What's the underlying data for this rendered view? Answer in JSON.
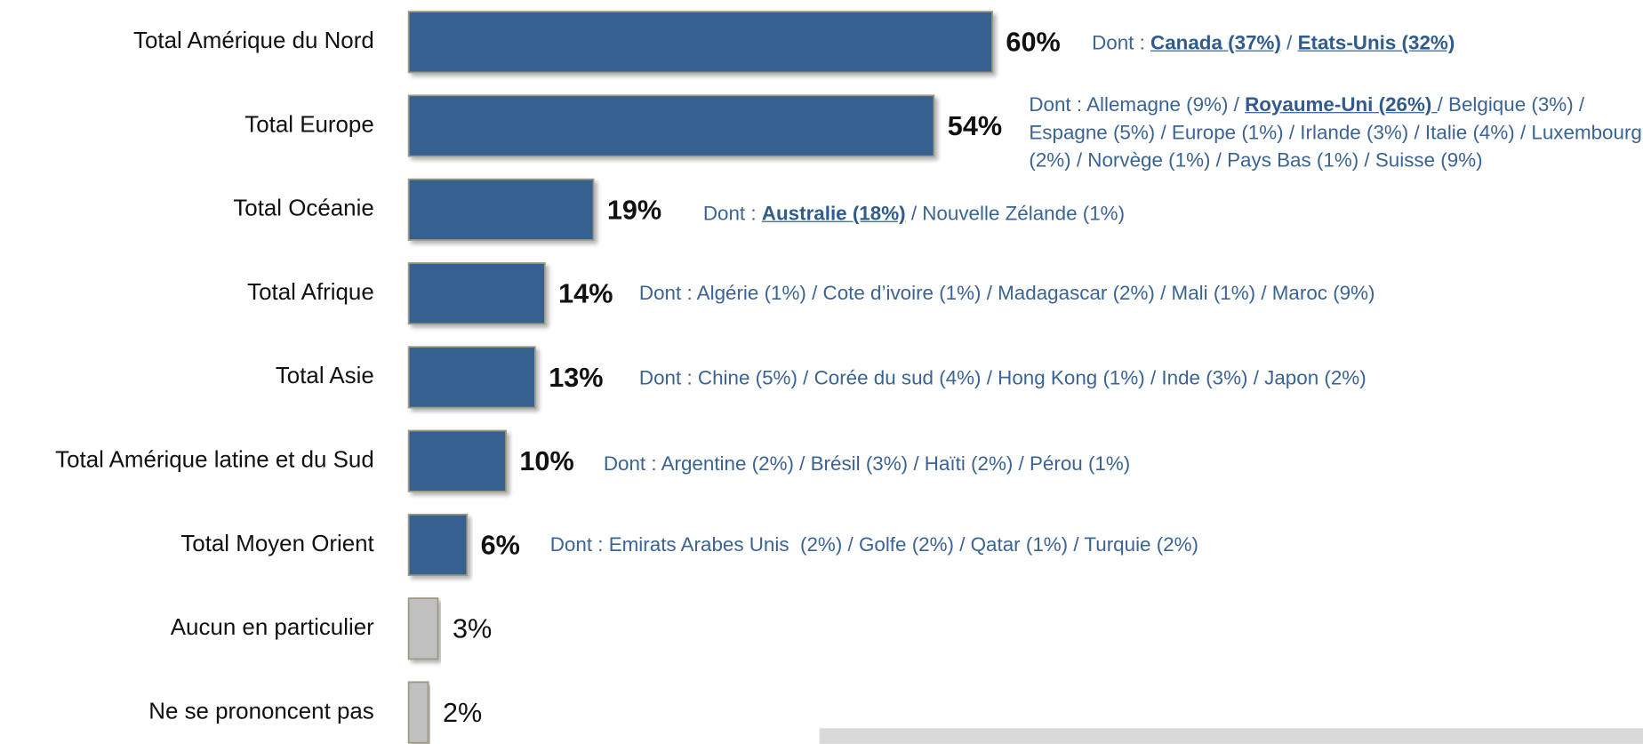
{
  "chart_data": {
    "type": "bar",
    "categories": [
      "Total Amérique du Nord",
      "Total Europe",
      "Total Océanie",
      "Total Afrique",
      "Total Asie",
      "Total Amérique latine et du Sud",
      "Total Moyen Orient",
      "Aucun en particulier",
      "Ne se prononcent pas"
    ],
    "values": [
      60,
      54,
      19,
      14,
      13,
      10,
      6,
      3,
      2
    ],
    "value_labels": [
      "60%",
      "54%",
      "19%",
      "14%",
      "13%",
      "10%",
      "6%",
      "3%",
      "2%"
    ],
    "colors": [
      "#36618f",
      "#36618f",
      "#36618f",
      "#36618f",
      "#36618f",
      "#36618f",
      "#36618f",
      "#c0c0c0",
      "#c0c0c0"
    ],
    "annotations": [
      [
        {
          "text": "Dont : "
        },
        {
          "text": "Canada (37%)",
          "bold": true
        },
        {
          "text": " / "
        },
        {
          "text": "Etats-Unis (32%)",
          "bold": true
        }
      ],
      [
        {
          "text": "Dont : Allemagne (9%) / "
        },
        {
          "text": "Royaume-Uni (26%) ",
          "bold": true
        },
        {
          "text": "/ Belgique (3%) / Espagne (5%) / Europe (1%) / Irlande (3%) / Italie (4%) / Luxembourg (2%) / Norvège (1%) / Pays Bas (1%) / Suisse (9%)"
        }
      ],
      [
        {
          "text": "Dont : "
        },
        {
          "text": "Australie (18%)",
          "bold": true
        },
        {
          "text": " / Nouvelle Zélande (1%)"
        }
      ],
      [
        {
          "text": "Dont : Algérie (1%) / Cote d’ivoire (1%) / Madagascar (2%) / Mali (1%) / Maroc (9%)"
        }
      ],
      [
        {
          "text": "Dont : Chine (5%) / Corée du sud (4%) / Hong Kong (1%) / Inde (3%) / Japon (2%)"
        }
      ],
      [
        {
          "text": "Dont : Argentine (2%) / Brésil (3%) / Haïti (2%) / Pérou (1%)"
        }
      ],
      [
        {
          "text": "Dont : Emirats Arabes Unis  (2%) / Golfe (2%) / Qatar (1%) / Turquie (2%)"
        }
      ]
    ]
  }
}
